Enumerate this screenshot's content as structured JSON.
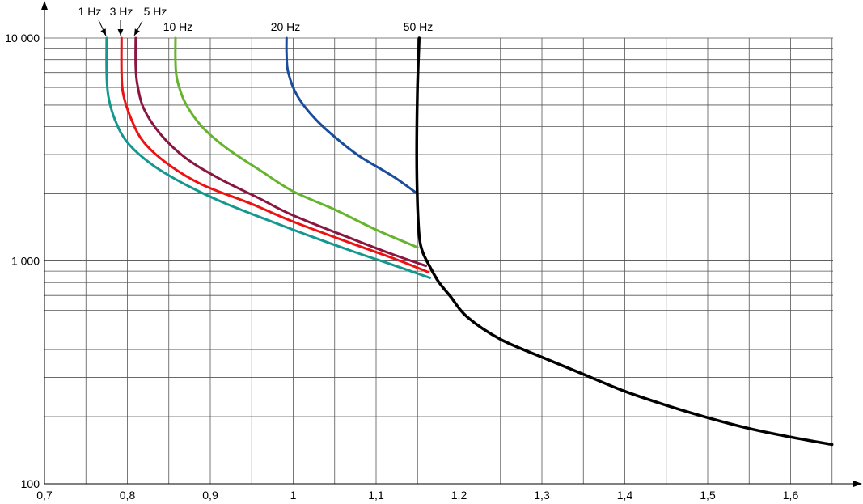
{
  "chart_data": {
    "type": "line",
    "title": "",
    "xlabel": "",
    "ylabel": "",
    "x_scale": "linear",
    "y_scale": "log",
    "xlim": [
      0.7,
      1.65
    ],
    "ylim": [
      100,
      10000
    ],
    "x_ticks": [
      0.7,
      0.8,
      0.9,
      1.0,
      1.1,
      1.2,
      1.3,
      1.4,
      1.5,
      1.6
    ],
    "x_tick_labels": [
      "0,7",
      "0,8",
      "0,9",
      "1",
      "1,1",
      "1,2",
      "1,3",
      "1,4",
      "1,5",
      "1,6"
    ],
    "y_tick_labels": [
      {
        "value": 100,
        "label": "100"
      },
      {
        "value": 1000,
        "label": "1 000"
      },
      {
        "value": 10000,
        "label": "10 000"
      }
    ],
    "grid": true,
    "series": [
      {
        "name": "1 Hz",
        "color": "#13978f",
        "points": [
          [
            0.775,
            10000
          ],
          [
            0.775,
            7000
          ],
          [
            0.777,
            5500
          ],
          [
            0.785,
            4300
          ],
          [
            0.8,
            3400
          ],
          [
            0.83,
            2700
          ],
          [
            0.87,
            2200
          ],
          [
            0.92,
            1800
          ],
          [
            1.0,
            1380
          ],
          [
            1.07,
            1110
          ],
          [
            1.12,
            960
          ],
          [
            1.165,
            840
          ]
        ]
      },
      {
        "name": "3 Hz",
        "color": "#ee1111",
        "points": [
          [
            0.793,
            10000
          ],
          [
            0.793,
            7000
          ],
          [
            0.795,
            5600
          ],
          [
            0.805,
            4300
          ],
          [
            0.82,
            3400
          ],
          [
            0.85,
            2700
          ],
          [
            0.89,
            2200
          ],
          [
            0.95,
            1800
          ],
          [
            1.0,
            1500
          ],
          [
            1.07,
            1200
          ],
          [
            1.12,
            1030
          ],
          [
            1.163,
            890
          ]
        ]
      },
      {
        "name": "5 Hz",
        "color": "#8a1540",
        "points": [
          [
            0.81,
            10000
          ],
          [
            0.81,
            7500
          ],
          [
            0.812,
            6200
          ],
          [
            0.82,
            4800
          ],
          [
            0.84,
            3700
          ],
          [
            0.87,
            2900
          ],
          [
            0.91,
            2350
          ],
          [
            0.96,
            1900
          ],
          [
            1.0,
            1600
          ],
          [
            1.07,
            1260
          ],
          [
            1.12,
            1070
          ],
          [
            1.16,
            950
          ]
        ]
      },
      {
        "name": "10 Hz",
        "color": "#66b32e",
        "points": [
          [
            0.858,
            10000
          ],
          [
            0.858,
            7800
          ],
          [
            0.86,
            6500
          ],
          [
            0.87,
            5100
          ],
          [
            0.89,
            4000
          ],
          [
            0.92,
            3200
          ],
          [
            0.96,
            2550
          ],
          [
            1.0,
            2050
          ],
          [
            1.05,
            1700
          ],
          [
            1.1,
            1380
          ],
          [
            1.15,
            1150
          ]
        ]
      },
      {
        "name": "20 Hz",
        "color": "#1a4c9c",
        "points": [
          [
            0.992,
            10000
          ],
          [
            0.992,
            8500
          ],
          [
            0.994,
            7000
          ],
          [
            1.005,
            5500
          ],
          [
            1.025,
            4400
          ],
          [
            1.05,
            3600
          ],
          [
            1.08,
            2950
          ],
          [
            1.12,
            2400
          ],
          [
            1.15,
            2000
          ]
        ]
      },
      {
        "name": "50 Hz",
        "color": "#000000",
        "points": [
          [
            1.152,
            10000
          ],
          [
            1.15,
            6000
          ],
          [
            1.149,
            3000
          ],
          [
            1.15,
            1800
          ],
          [
            1.152,
            1300
          ],
          [
            1.156,
            1100
          ],
          [
            1.165,
            940
          ],
          [
            1.175,
            810
          ],
          [
            1.19,
            690
          ],
          [
            1.21,
            560
          ],
          [
            1.25,
            445
          ],
          [
            1.3,
            370
          ],
          [
            1.35,
            310
          ],
          [
            1.4,
            260
          ],
          [
            1.45,
            225
          ],
          [
            1.5,
            198
          ],
          [
            1.55,
            177
          ],
          [
            1.6,
            162
          ],
          [
            1.65,
            150
          ]
        ]
      }
    ],
    "annotations": [
      {
        "text": "1 Hz",
        "arrow": true
      },
      {
        "text": "3 Hz",
        "arrow": true
      },
      {
        "text": "5 Hz",
        "arrow": true
      },
      {
        "text": "10 Hz",
        "arrow": false
      },
      {
        "text": "20 Hz",
        "arrow": false
      },
      {
        "text": "50 Hz",
        "arrow": false
      }
    ]
  }
}
